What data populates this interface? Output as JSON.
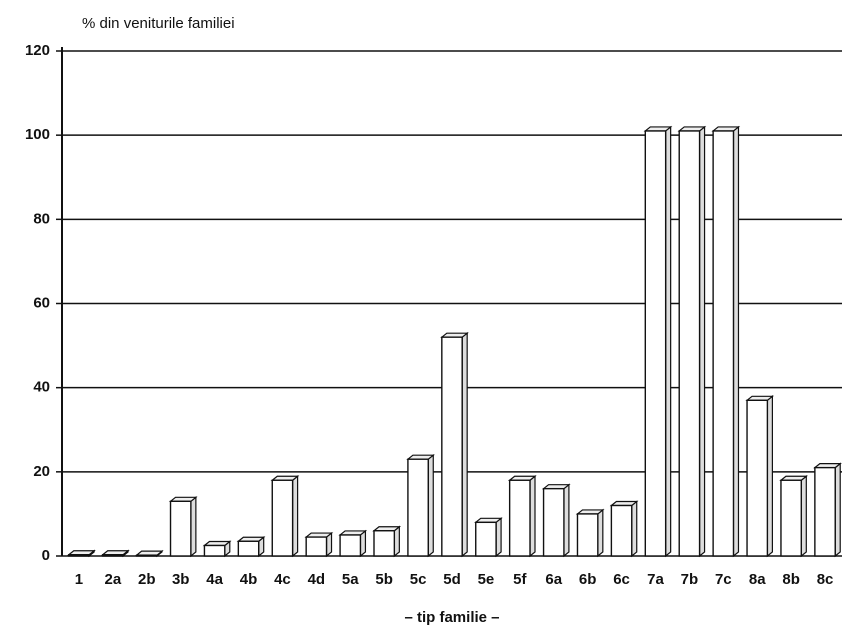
{
  "chart_data": {
    "type": "bar",
    "title": "% din veniturile familiei",
    "xlabel": "– tip familie –",
    "categories": [
      "1",
      "2a",
      "2b",
      "3b",
      "4a",
      "4b",
      "4c",
      "4d",
      "5a",
      "5b",
      "5c",
      "5d",
      "5e",
      "5f",
      "6a",
      "6b",
      "6c",
      "7a",
      "7b",
      "7c",
      "8a",
      "8b",
      "8c"
    ],
    "values": [
      0.3,
      0.3,
      0.2,
      13,
      2.5,
      3.5,
      18,
      4.5,
      5,
      6,
      23,
      52,
      8,
      18,
      16,
      10,
      12,
      101,
      101,
      101,
      37,
      18,
      21
    ],
    "color": "#ffffff",
    "ylim": [
      0,
      120
    ],
    "yticks": [
      0,
      20,
      40,
      60,
      80,
      100,
      120
    ],
    "grid": true
  }
}
